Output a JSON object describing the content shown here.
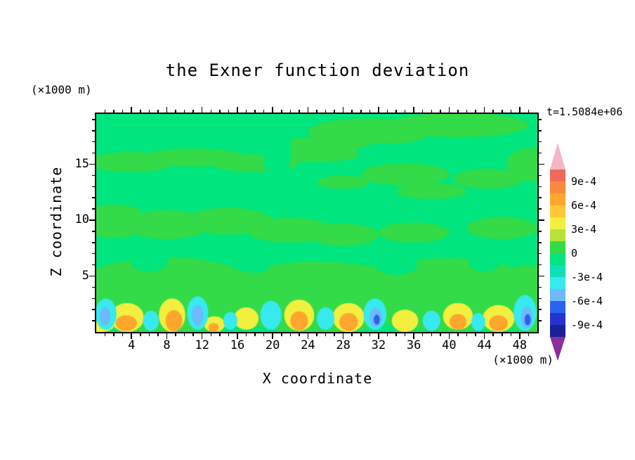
{
  "title": "the Exner function deviation",
  "timestamp": "t=1.5084e+06",
  "axes": {
    "x_label": "X coordinate",
    "z_label": "Z coordinate",
    "x_unit": "(×1000 m)",
    "z_unit": "(×1000 m)",
    "x_ticks": [
      4,
      8,
      12,
      16,
      20,
      24,
      28,
      32,
      36,
      40,
      44,
      48
    ],
    "z_ticks": [
      5,
      10,
      15
    ],
    "x_minor_step": 1,
    "x_major_step": 4,
    "z_minor_step": 1,
    "z_major_step": 5
  },
  "colorbar": {
    "labels": [
      "9e-4",
      "6e-4",
      "3e-4",
      "0",
      "-3e-4",
      "-6e-4",
      "-9e-4"
    ],
    "label_boundaries": [
      1,
      3,
      5,
      7,
      9,
      11,
      13
    ],
    "arrow_top_color": "#f2b6c6",
    "arrow_bottom_color": "#8c2e9c",
    "segment_colors": [
      "#ef6a5a",
      "#fa8a40",
      "#ffa62e",
      "#fdc832",
      "#f2ef3e",
      "#b9e23c",
      "#33db49",
      "#00e57d",
      "#0fe0b6",
      "#38e9ef",
      "#6db9fb",
      "#2d62ef",
      "#2433cf",
      "#1c1f9a"
    ]
  },
  "chart_data": {
    "type": "heatmap",
    "subtype": "filled-contour",
    "title": "the Exner function deviation",
    "xlabel": "X coordinate (×1000 m)",
    "ylabel": "Z coordinate (×1000 m)",
    "time_annotation": "t=1.5084e+06",
    "xlim": [
      0,
      50
    ],
    "ylim": [
      0,
      19.5
    ],
    "contour_interval": 0.00015,
    "labeled_levels": [
      0.0009,
      0.0006,
      0.0003,
      0,
      -0.0003,
      -0.0006,
      -0.0009
    ],
    "palette": {
      "bg": {
        "hex": "#00e57d",
        "band": "-1.5e-4 to 0"
      },
      "green": {
        "hex": "#33db49",
        "band": "0 to 1.5e-4"
      },
      "yellow": {
        "hex": "#f2ef3e",
        "band": "3e-4 to 4.5e-4"
      },
      "orange": {
        "hex": "#ffa62e",
        "band": "6e-4 to 7.5e-4"
      },
      "cyan": {
        "hex": "#38e9ef",
        "band": "-3e-4 to -4.5e-4"
      },
      "lblue": {
        "hex": "#6db9fb",
        "band": "-4.5e-4 to -6e-4"
      },
      "blue": {
        "hex": "#2d62ef",
        "band": "-6e-4 to -7.5e-4"
      }
    },
    "features": [
      [
        4,
        15.2,
        5,
        0.9,
        "green"
      ],
      [
        11,
        15.6,
        6,
        0.8,
        "green"
      ],
      [
        18,
        15.1,
        5,
        0.8,
        "green"
      ],
      [
        25,
        16.3,
        6,
        1.1,
        "green"
      ],
      [
        31,
        17.9,
        7,
        1.2,
        "green"
      ],
      [
        41,
        18.5,
        8,
        1.1,
        "green"
      ],
      [
        35,
        14.1,
        5,
        1.0,
        "green"
      ],
      [
        28,
        13.4,
        3,
        0.6,
        "green"
      ],
      [
        38,
        12.6,
        4,
        0.7,
        "green"
      ],
      [
        44.5,
        13.7,
        4,
        0.9,
        "green"
      ],
      [
        49.5,
        15.0,
        3,
        1.5,
        "green"
      ],
      [
        2,
        9.9,
        4,
        1.5,
        "green"
      ],
      [
        8,
        9.6,
        5,
        1.3,
        "green"
      ],
      [
        15,
        9.9,
        5,
        1.2,
        "green"
      ],
      [
        22,
        9.1,
        5,
        1.1,
        "green"
      ],
      [
        28,
        8.7,
        4,
        1.0,
        "green"
      ],
      [
        36,
        8.9,
        4,
        0.9,
        "green"
      ],
      [
        46,
        9.3,
        4,
        1.0,
        "green"
      ],
      [
        8,
        3.3,
        11,
        3.4,
        "green"
      ],
      [
        25,
        3.1,
        12,
        3.2,
        "green"
      ],
      [
        40,
        3.3,
        11,
        3.3,
        "green"
      ],
      [
        49,
        3.0,
        4,
        3.0,
        "green"
      ],
      [
        20.5,
        16.2,
        1.6,
        2.8,
        "bg"
      ],
      [
        13,
        13.9,
        2.5,
        0.7,
        "bg"
      ],
      [
        33,
        16.0,
        3.5,
        0.9,
        "bg"
      ],
      [
        6,
        6.4,
        2.2,
        1.0,
        "bg"
      ],
      [
        18,
        6.2,
        2.0,
        0.9,
        "bg"
      ],
      [
        34,
        6.0,
        2.4,
        0.9,
        "bg"
      ],
      [
        44,
        6.2,
        1.8,
        0.8,
        "bg"
      ],
      [
        3.5,
        1.3,
        1.9,
        1.3,
        "yellow"
      ],
      [
        8.6,
        1.5,
        1.5,
        1.5,
        "yellow"
      ],
      [
        13.4,
        0.7,
        1.2,
        0.7,
        "yellow"
      ],
      [
        17,
        1.2,
        1.4,
        1.0,
        "yellow"
      ],
      [
        23,
        1.5,
        1.7,
        1.4,
        "yellow"
      ],
      [
        28.6,
        1.3,
        1.8,
        1.3,
        "yellow"
      ],
      [
        35,
        1.0,
        1.5,
        1.0,
        "yellow"
      ],
      [
        41,
        1.4,
        1.7,
        1.2,
        "yellow"
      ],
      [
        45.6,
        1.2,
        1.8,
        1.2,
        "yellow"
      ],
      [
        0.5,
        0.6,
        1.5,
        0.6,
        "yellow"
      ],
      [
        3.4,
        0.8,
        1.2,
        0.7,
        "orange"
      ],
      [
        8.8,
        1.0,
        0.95,
        0.95,
        "orange"
      ],
      [
        23,
        1.0,
        1.0,
        0.85,
        "orange"
      ],
      [
        28.6,
        0.9,
        1.05,
        0.8,
        "orange"
      ],
      [
        41,
        0.9,
        0.95,
        0.7,
        "orange"
      ],
      [
        45.6,
        0.8,
        1.05,
        0.7,
        "orange"
      ],
      [
        13.3,
        0.4,
        0.6,
        0.4,
        "orange"
      ],
      [
        1.1,
        1.6,
        1.2,
        1.4,
        "cyan"
      ],
      [
        6.2,
        1.0,
        0.9,
        0.9,
        "cyan"
      ],
      [
        11.5,
        1.7,
        1.2,
        1.5,
        "cyan"
      ],
      [
        15.2,
        1.0,
        0.8,
        0.8,
        "cyan"
      ],
      [
        19.8,
        1.5,
        1.2,
        1.3,
        "cyan"
      ],
      [
        26,
        1.2,
        1.0,
        1.0,
        "cyan"
      ],
      [
        31.6,
        1.6,
        1.3,
        1.4,
        "cyan"
      ],
      [
        38,
        1.0,
        1.0,
        0.9,
        "cyan"
      ],
      [
        43.3,
        0.9,
        0.8,
        0.8,
        "cyan"
      ],
      [
        48.6,
        1.7,
        1.3,
        1.6,
        "cyan"
      ],
      [
        11.5,
        1.5,
        0.65,
        0.9,
        "lblue"
      ],
      [
        31.7,
        1.3,
        0.7,
        0.85,
        "lblue"
      ],
      [
        48.8,
        1.3,
        0.65,
        0.95,
        "lblue"
      ],
      [
        1.0,
        1.4,
        0.6,
        0.8,
        "lblue"
      ],
      [
        31.8,
        1.1,
        0.35,
        0.45,
        "blue"
      ],
      [
        48.9,
        1.1,
        0.35,
        0.5,
        "blue"
      ]
    ]
  }
}
